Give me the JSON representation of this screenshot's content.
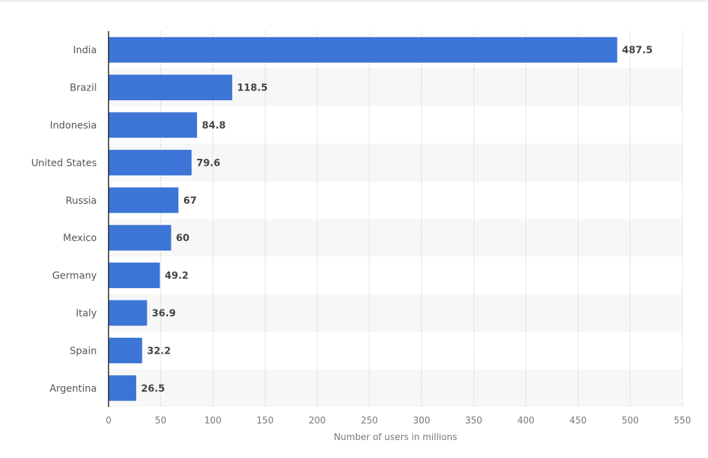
{
  "chart_data": {
    "type": "bar",
    "orientation": "horizontal",
    "categories": [
      "India",
      "Brazil",
      "Indonesia",
      "United States",
      "Russia",
      "Mexico",
      "Germany",
      "Italy",
      "Spain",
      "Argentina"
    ],
    "values": [
      487.5,
      118.5,
      84.8,
      79.6,
      67,
      60,
      49.2,
      36.9,
      32.2,
      26.5
    ],
    "value_labels": [
      "487.5",
      "118.5",
      "84.8",
      "79.6",
      "67",
      "60",
      "49.2",
      "36.9",
      "32.2",
      "26.5"
    ],
    "title": "",
    "xlabel": "Number of users in millions",
    "ylabel": "",
    "xlim": [
      0,
      550
    ],
    "xticks": [
      "0",
      "50",
      "100",
      "150",
      "200",
      "250",
      "300",
      "350",
      "400",
      "450",
      "500",
      "550"
    ],
    "grid": "vertical dotted",
    "bar_color": "#3d75d6",
    "legend": "none"
  }
}
